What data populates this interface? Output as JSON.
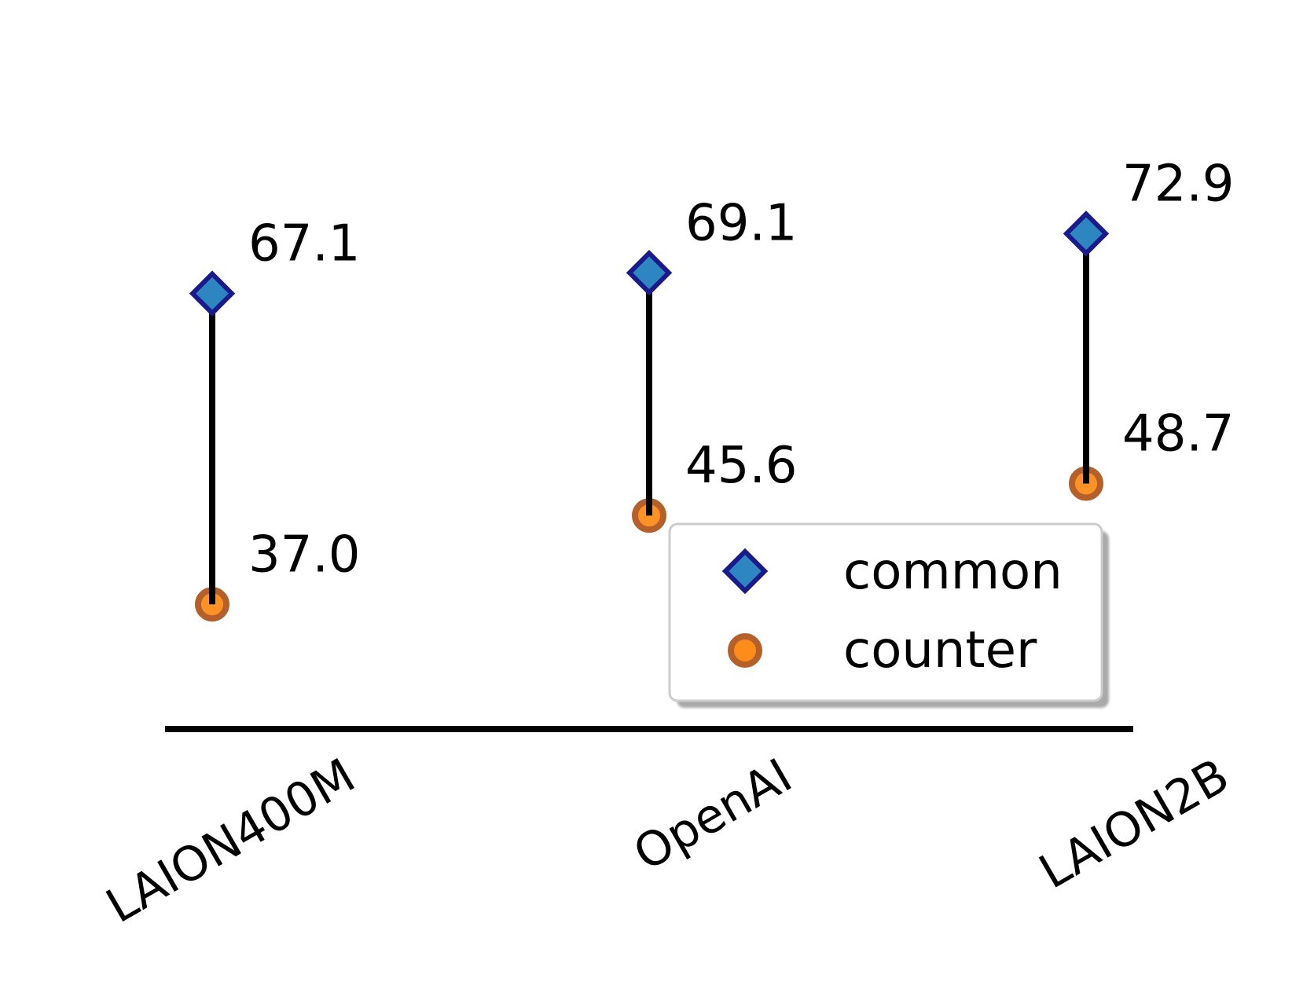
{
  "chart_data": {
    "type": "scatter",
    "categories": [
      "LAION400M",
      "OpenAI",
      "LAION2B"
    ],
    "series": [
      {
        "name": "common",
        "values": [
          67.1,
          69.1,
          72.9
        ],
        "labels": [
          "67.1",
          "69.1",
          "72.9"
        ],
        "marker": "diamond",
        "color": "#2e86c1",
        "edge_color": "#1a1a8c"
      },
      {
        "name": "counter",
        "values": [
          37.0,
          45.6,
          48.7
        ],
        "labels": [
          "37.0",
          "45.6",
          "48.7"
        ],
        "marker": "circle",
        "color": "#ff8c1a",
        "edge_color": "#b5602a"
      }
    ],
    "connector_color": "#000000",
    "ylim": [
      25,
      80
    ],
    "grid": false,
    "legend": "lower-right",
    "title": "",
    "xlabel": "",
    "ylabel": ""
  }
}
